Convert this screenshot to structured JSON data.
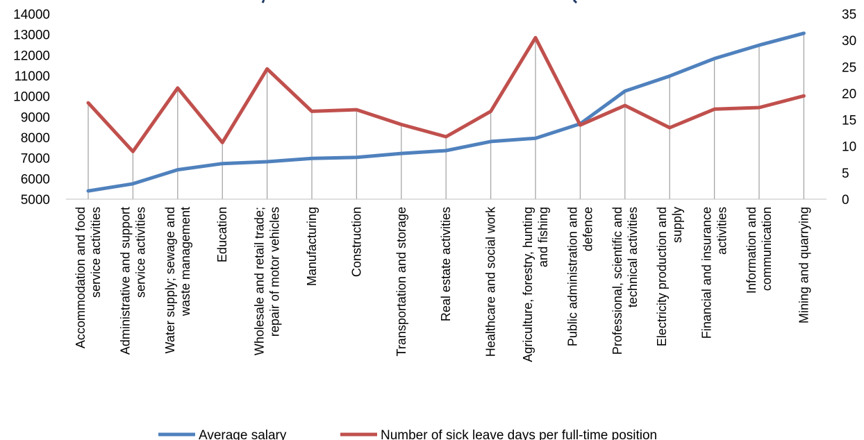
{
  "chart_data": {
    "type": "line",
    "categories": [
      [
        "Accommodation and food",
        "service activities"
      ],
      [
        "Administrative and support",
        "service activities"
      ],
      [
        "Water supply; sewage and",
        "waste management"
      ],
      [
        "Education"
      ],
      [
        "Wholesale and retail trade;",
        "repair of motor vehicles"
      ],
      [
        "Manufacturing"
      ],
      [
        "Construction"
      ],
      [
        "Transportation and storage"
      ],
      [
        "Real estate activities"
      ],
      [
        "Healthcare and social work"
      ],
      [
        "Agriculture, forestry, hunting",
        "and fishing"
      ],
      [
        "Public administration and",
        "defence"
      ],
      [
        "Professional, scientific and",
        "technical activities"
      ],
      [
        "Electricity production and",
        "supply"
      ],
      [
        "Financial and insurance",
        "activities"
      ],
      [
        "Information and",
        "communication"
      ],
      [
        "Mining and quarrying"
      ]
    ],
    "series": [
      {
        "name": "Average salary",
        "axis": "left",
        "color": "#4f81bd",
        "values": [
          5400,
          5750,
          6430,
          6730,
          6820,
          6980,
          7030,
          7220,
          7360,
          7800,
          7960,
          8660,
          10250,
          10980,
          11830,
          12480,
          13060
        ]
      },
      {
        "name": "Number of sick leave days per full-time position",
        "axis": "right",
        "color": "#c0504d",
        "values": [
          18.2,
          9.0,
          21.0,
          10.7,
          24.6,
          16.6,
          16.9,
          14.1,
          11.8,
          16.6,
          30.5,
          14.0,
          17.7,
          13.5,
          17.0,
          17.3,
          19.5
        ]
      }
    ],
    "y_left": {
      "ylim": [
        5000,
        14000
      ],
      "ticks": [
        "5000",
        "6000",
        "7000",
        "8000",
        "9000",
        "10000",
        "11000",
        "12000",
        "13000",
        "14000"
      ]
    },
    "y_right": {
      "ylim": [
        0,
        35
      ],
      "ticks": [
        "0",
        "5",
        "10",
        "15",
        "20",
        "25",
        "30",
        "35"
      ]
    },
    "gridlines": "vertical drop lines to each category",
    "legend": "bottom"
  }
}
